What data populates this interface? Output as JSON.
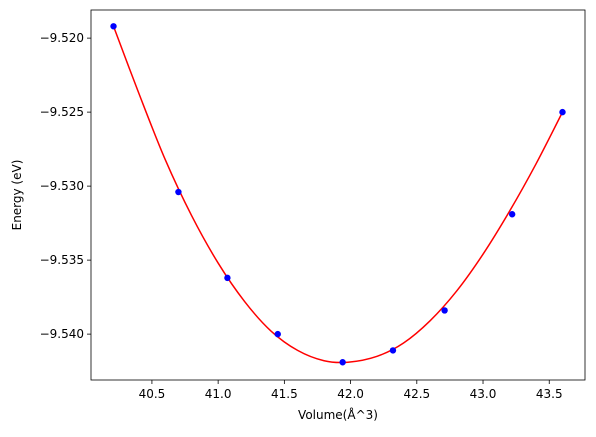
{
  "chart_data": {
    "type": "line",
    "xlabel": "Volume(Å^3)",
    "ylabel": "Energy (eV)",
    "xlim": [
      40.04,
      43.77
    ],
    "ylim": [
      -9.5431,
      -9.5181
    ],
    "x_ticks": [
      40.5,
      41.0,
      41.5,
      42.0,
      42.5,
      43.0,
      43.5
    ],
    "x_tick_labels": [
      "40.5",
      "41.0",
      "41.5",
      "42.0",
      "42.5",
      "43.0",
      "43.5"
    ],
    "y_ticks": [
      -9.54,
      -9.535,
      -9.53,
      -9.525,
      -9.52
    ],
    "y_tick_labels": [
      "−9.540",
      "−9.535",
      "−9.530",
      "−9.525",
      "−9.520"
    ],
    "grid": false,
    "series": [
      {
        "kind": "scatter",
        "color": "#0000ff",
        "marker": "circle",
        "x": [
          40.21,
          40.7,
          41.07,
          41.45,
          41.94,
          42.32,
          42.71,
          43.22,
          43.6
        ],
        "y": [
          -9.5192,
          -9.5304,
          -9.5362,
          -9.54,
          -9.5419,
          -9.5411,
          -9.5384,
          -9.5319,
          -9.525
        ]
      },
      {
        "kind": "fit-curve",
        "color": "#ff0000",
        "x": [
          40.21,
          40.4,
          40.6,
          40.8,
          41.0,
          41.2,
          41.4,
          41.6,
          41.8,
          41.98,
          42.2,
          42.4,
          42.6,
          42.8,
          43.0,
          43.2,
          43.4,
          43.6
        ],
        "y": [
          -9.5192,
          -9.5237,
          -9.5282,
          -9.532,
          -9.5352,
          -9.5378,
          -9.5398,
          -9.5411,
          -9.5418,
          -9.5419,
          -9.5415,
          -9.5406,
          -9.5391,
          -9.5371,
          -9.5346,
          -9.5317,
          -9.5285,
          -9.525
        ]
      }
    ]
  }
}
